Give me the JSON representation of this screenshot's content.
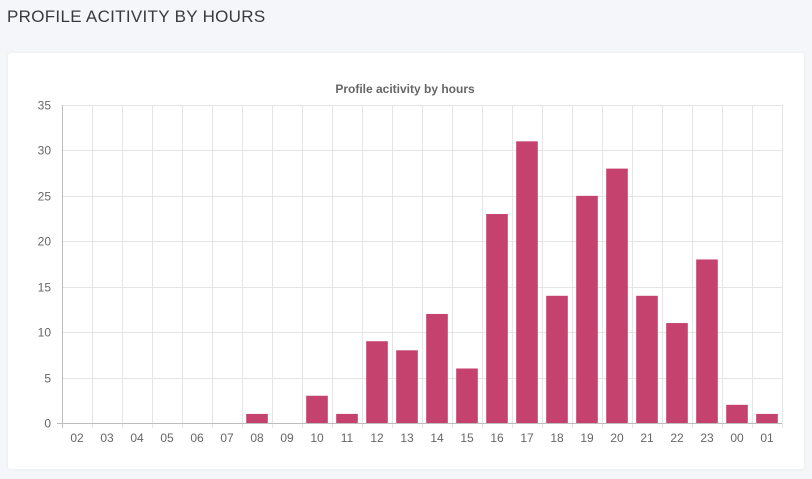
{
  "page": {
    "heading": "PROFILE ACITIVITY BY HOURS"
  },
  "colors": {
    "bar": "#c5426e",
    "grid": "#e5e5e5",
    "axis": "#bdbdbd",
    "text": "#666666"
  },
  "chart_data": {
    "type": "bar",
    "title": "Profile acitivity by hours",
    "xlabel": "",
    "ylabel": "",
    "ylim": [
      0,
      35
    ],
    "yticks": [
      0,
      5,
      10,
      15,
      20,
      25,
      30,
      35
    ],
    "grid": true,
    "legend": "none",
    "categories": [
      "02",
      "03",
      "04",
      "05",
      "06",
      "07",
      "08",
      "09",
      "10",
      "11",
      "12",
      "13",
      "14",
      "15",
      "16",
      "17",
      "18",
      "19",
      "20",
      "21",
      "22",
      "23",
      "00",
      "01"
    ],
    "values": [
      0,
      0,
      0,
      0,
      0,
      0,
      1,
      0,
      3,
      1,
      9,
      8,
      12,
      6,
      23,
      31,
      14,
      25,
      28,
      14,
      11,
      18,
      2,
      1
    ]
  }
}
